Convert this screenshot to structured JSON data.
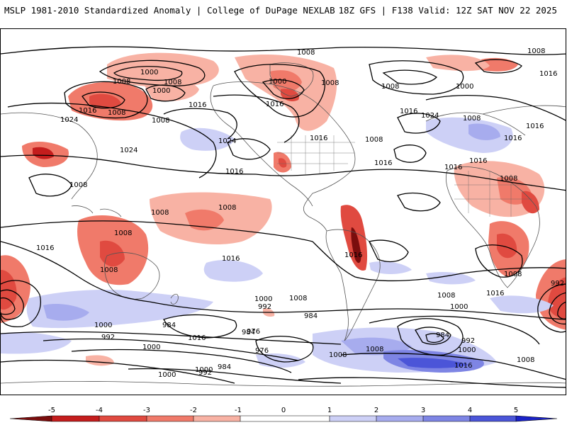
{
  "header": {
    "left_title": "MSLP 1981-2010 Standardized Anomaly | College of DuPage NEXLAB",
    "right_title": "18Z GFS | F138 Valid: 12Z SAT NOV 22 2025"
  },
  "contour_labels": [
    "1008",
    "1008",
    "1000",
    "1008",
    "1000",
    "1008",
    "1000",
    "1008",
    "1016",
    "1008",
    "1008",
    "1016",
    "1000",
    "1016",
    "1024",
    "1024",
    "1024",
    "1016",
    "1008",
    "1016",
    "1016",
    "1024",
    "1016",
    "1016",
    "1016",
    "1008",
    "1008",
    "1008",
    "1008",
    "1008",
    "1016",
    "1016",
    "1008",
    "1016",
    "1008",
    "1016",
    "1016",
    "1008",
    "1016",
    "1008",
    "992",
    "1000",
    "1008",
    "992",
    "984",
    "984",
    "976",
    "1000",
    "992",
    "984",
    "976",
    "1000",
    "984",
    "1000",
    "1008",
    "1008",
    "1016",
    "1016",
    "1008",
    "1000",
    "984",
    "992",
    "1000",
    "1008",
    "1016",
    "1000",
    "992"
  ],
  "colorbar": {
    "tick_labels": [
      "-5",
      "-4",
      "-3",
      "-2",
      "-1",
      "0",
      "1",
      "2",
      "3",
      "4",
      "5"
    ],
    "colors": {
      "neg5": "#7a0d0d",
      "neg4": "#c41d1d",
      "neg3": "#e04a40",
      "neg2": "#f07a6a",
      "neg1": "#f8b2a4",
      "zero": "#ffffff",
      "pos1": "#cdd0f6",
      "pos2": "#a7acee",
      "pos3": "#7e85e4",
      "pos4": "#4b55d8",
      "pos5": "#1a22c8"
    }
  }
}
